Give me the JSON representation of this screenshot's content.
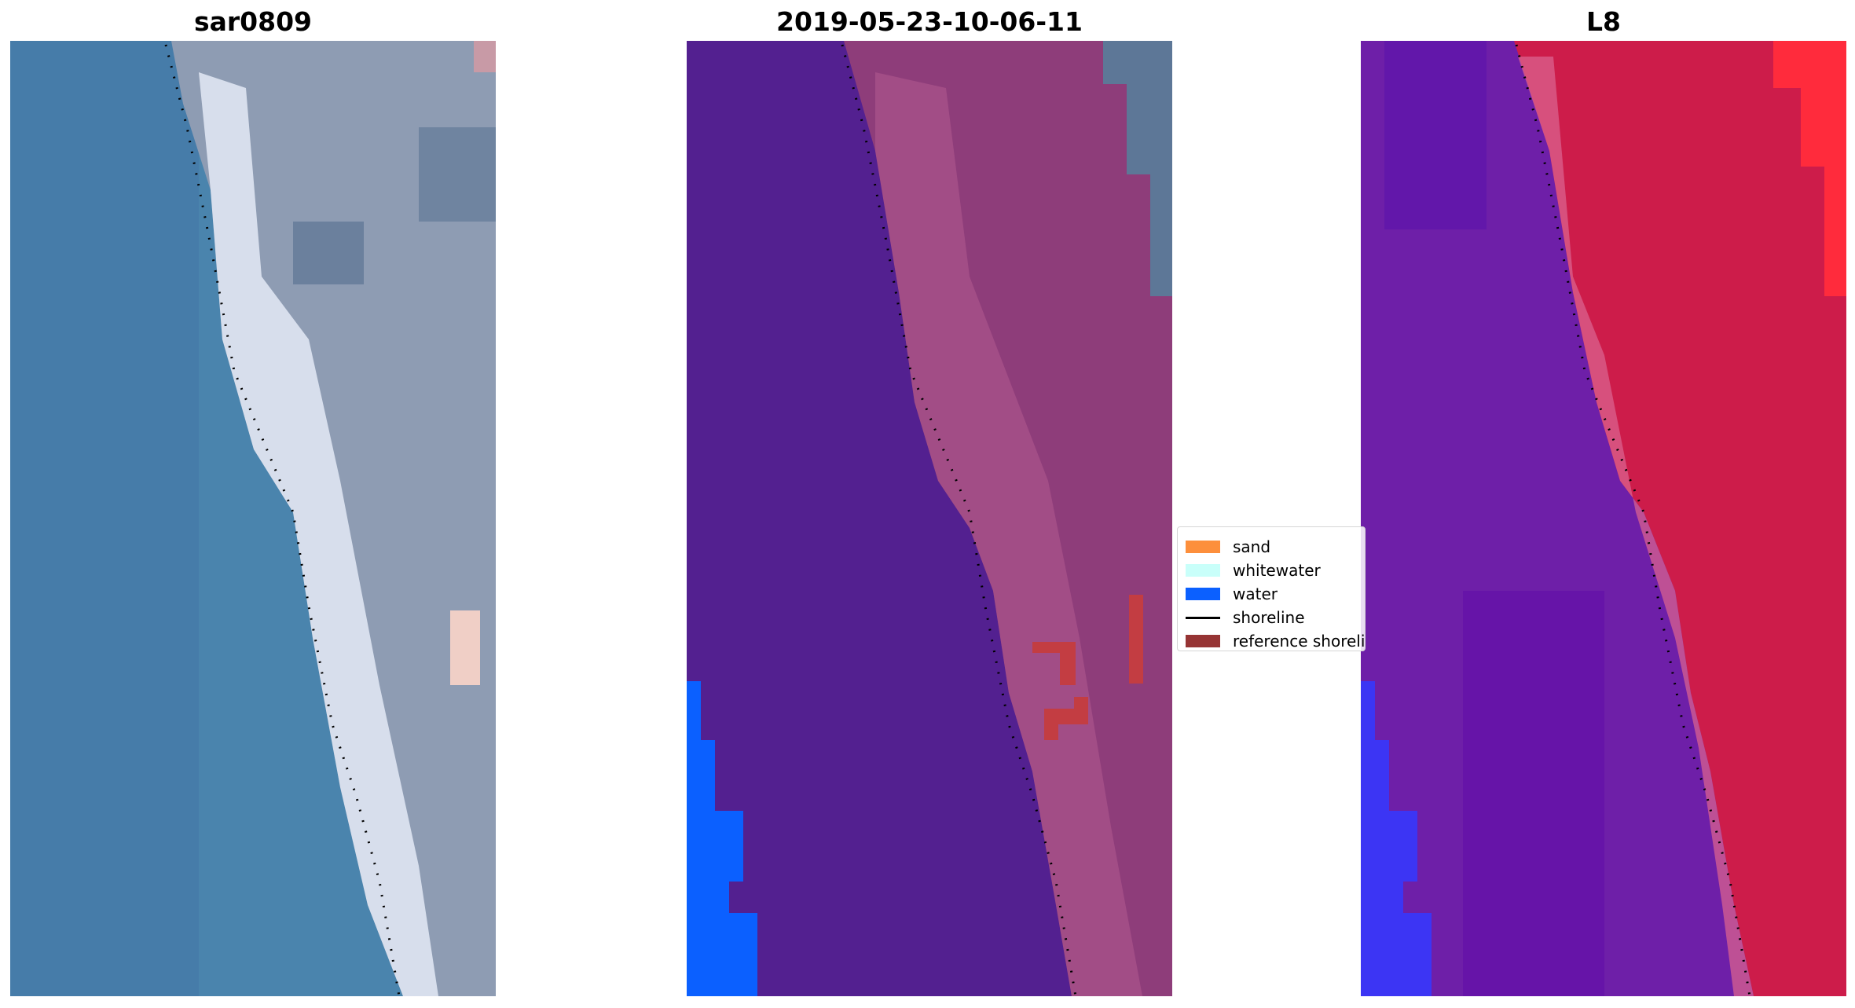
{
  "panels": [
    {
      "title": "sar0809"
    },
    {
      "title": "2019-05-23-10-06-11"
    },
    {
      "title": "L8"
    }
  ],
  "legend": {
    "items": [
      {
        "label": "sand",
        "color": "#fd8f3c",
        "kind": "patch"
      },
      {
        "label": "whitewater",
        "color": "#c9fffa",
        "kind": "patch"
      },
      {
        "label": "water",
        "color": "#0b60ff",
        "kind": "patch"
      },
      {
        "label": "shoreline",
        "color": "#000000",
        "kind": "line"
      },
      {
        "label": "reference shoreline",
        "color": "#963434",
        "kind": "patch"
      }
    ]
  },
  "colors": {
    "rgb_water": "#4a84ad",
    "rgb_land": "#8e9cb3",
    "rgb_beach": "#dfe6f2",
    "class_background": "#532090",
    "class_land": "#8e3d7a",
    "class_water": "#0b60ff",
    "class_reference": "#c33d42",
    "swir_water": "#6e1fa8",
    "swir_land": "#cd1c4a",
    "swir_bright": "#ff2b3c"
  }
}
